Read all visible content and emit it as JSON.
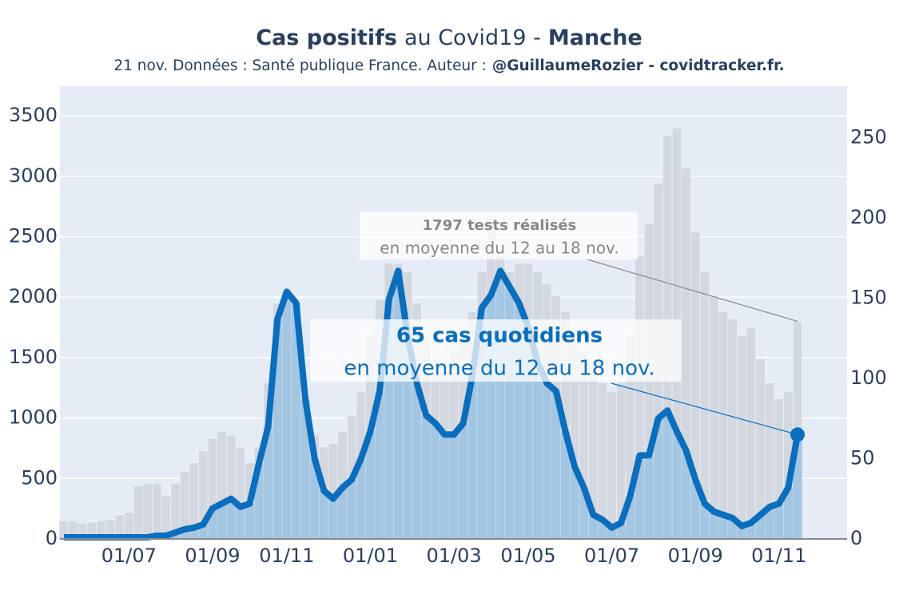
{
  "chart_data": {
    "type": "bar",
    "title_parts": [
      "Cas positifs",
      "au Covid19 -",
      "Manche"
    ],
    "subtitle_parts": [
      "21 nov. Données : Santé publique France. Auteur :",
      "@GuillaumeRozier - covidtracker.fr."
    ],
    "categories": [
      null,
      null,
      null,
      null,
      null,
      null,
      null,
      "01/07",
      null,
      null,
      null,
      null,
      null,
      null,
      null,
      null,
      "01/09",
      null,
      null,
      null,
      null,
      null,
      null,
      null,
      "01/11",
      null,
      null,
      null,
      null,
      null,
      null,
      null,
      null,
      "01/01",
      null,
      null,
      null,
      null,
      null,
      null,
      null,
      null,
      "01/03",
      null,
      null,
      null,
      null,
      null,
      null,
      null,
      "01/05",
      null,
      null,
      null,
      null,
      null,
      null,
      null,
      null,
      "01/07",
      null,
      null,
      null,
      null,
      null,
      null,
      null,
      null,
      "01/09",
      null,
      null,
      null,
      null,
      null,
      null,
      null,
      null,
      "01/11",
      null,
      null
    ],
    "series": [
      {
        "type": "bar",
        "axis": "y",
        "color": "#d3d8e0",
        "values": [
          150,
          150,
          130,
          140,
          150,
          160,
          200,
          220,
          440,
          460,
          460,
          360,
          460,
          560,
          630,
          730,
          830,
          890,
          860,
          760,
          630,
          760,
          1290,
          1950,
          2050,
          1750,
          1090,
          860,
          760,
          790,
          890,
          1020,
          1220,
          1680,
          1980,
          2280,
          2280,
          2210,
          1950,
          1680,
          1490,
          1420,
          1550,
          1680,
          1880,
          2210,
          2670,
          2340,
          2210,
          2280,
          2280,
          2210,
          2110,
          2010,
          1880,
          1680,
          1550,
          1490,
          1290,
          1220,
          1290,
          1680,
          2340,
          2610,
          2940,
          3340,
          3400,
          3070,
          2540,
          2210,
          2010,
          1880,
          1820,
          1680,
          1750,
          1490,
          1290,
          1160,
          1220,
          1800
        ]
      },
      {
        "type": "line",
        "axis": "y2",
        "color": "#0a6ebd",
        "fill_color": "#a3c6e3",
        "values": [
          1,
          1,
          1,
          1,
          1,
          1,
          1,
          1,
          1,
          1,
          2,
          2,
          4,
          6,
          7,
          9,
          19,
          22,
          25,
          20,
          22,
          47,
          70,
          137,
          154,
          147,
          87,
          50,
          30,
          25,
          32,
          37,
          50,
          67,
          92,
          149,
          167,
          127,
          97,
          77,
          72,
          65,
          65,
          72,
          102,
          144,
          152,
          167,
          157,
          147,
          132,
          110,
          97,
          92,
          67,
          45,
          32,
          15,
          12,
          7,
          10,
          27,
          52,
          52,
          75,
          80,
          67,
          55,
          37,
          22,
          17,
          15,
          13,
          8,
          10,
          15,
          20,
          22,
          32,
          65
        ]
      }
    ],
    "ylim": [
      0,
      3745
    ],
    "yticks": [
      0,
      500,
      1000,
      1500,
      2000,
      2500,
      3000,
      3500
    ],
    "y2lim": [
      0,
      282
    ],
    "y2ticks": [
      0,
      50,
      100,
      150,
      200,
      250
    ],
    "grid": true,
    "annotations": [
      {
        "lines": [
          "1797 tests réalisés",
          "en moyenne du 12 au 18 nov."
        ],
        "color": "#888888"
      },
      {
        "lines": [
          "65 cas quotidiens",
          "en moyenne du 12 au 18 nov."
        ],
        "color": "#0a6ebd"
      }
    ]
  }
}
